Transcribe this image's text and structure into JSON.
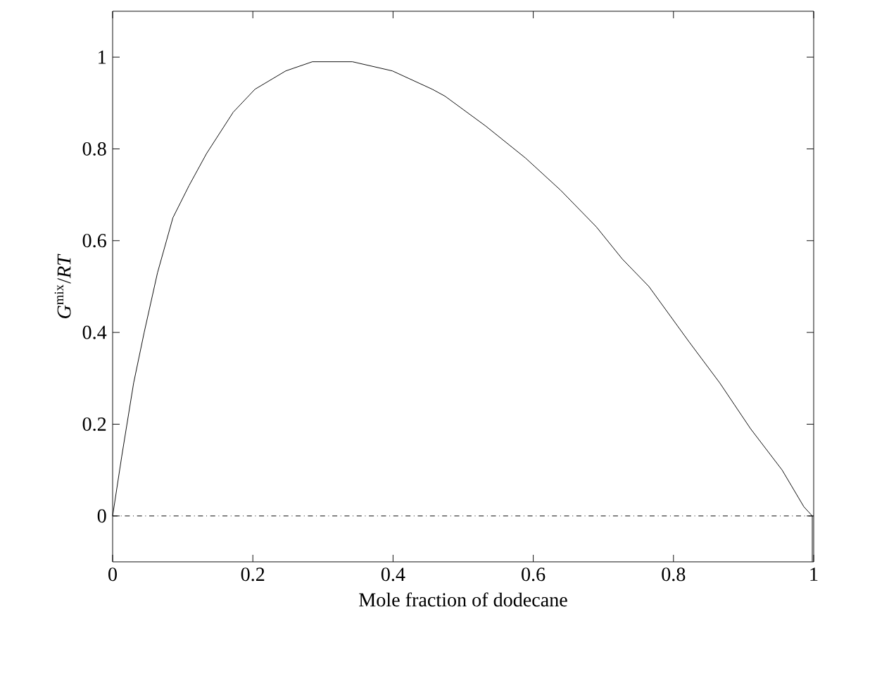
{
  "chart_data": {
    "type": "line",
    "xlabel": "Mole fraction of dodecane",
    "ylabel": "*G*$^{mix}$/*RT*",
    "x": [
      0,
      0.013,
      0.03,
      0.045,
      0.064,
      0.086,
      0.109,
      0.134,
      0.172,
      0.203,
      0.247,
      0.285,
      0.342,
      0.399,
      0.456,
      0.474,
      0.532,
      0.589,
      0.639,
      0.69,
      0.727,
      0.765,
      0.822,
      0.866,
      0.91,
      0.955,
      0.986,
      0.998,
      0.998
    ],
    "series": [
      {
        "color": "#000000",
        "values": [
          0,
          0.13,
          0.29,
          0.4,
          0.53,
          0.65,
          0.72,
          0.79,
          0.88,
          0.93,
          0.97,
          0.99,
          0.99,
          0.97,
          0.93,
          0.915,
          0.85,
          0.78,
          0.71,
          0.63,
          0.56,
          0.5,
          0.38,
          0.29,
          0.19,
          0.1,
          0.02,
          0,
          -0.1
        ]
      }
    ],
    "xlim": [
      0,
      1
    ],
    "ylim": [
      -0.1,
      1.1
    ],
    "xticks": [
      0,
      0.2,
      0.4,
      0.6,
      0.8,
      1
    ],
    "yticks": [
      0,
      0.2,
      0.4,
      0.6,
      0.8,
      1
    ],
    "ref_lines": [
      {
        "axis": "y",
        "value": 0,
        "line_style": "dashdot",
        "color": "#000000"
      }
    ],
    "marker": "none",
    "line_style": "solid"
  }
}
